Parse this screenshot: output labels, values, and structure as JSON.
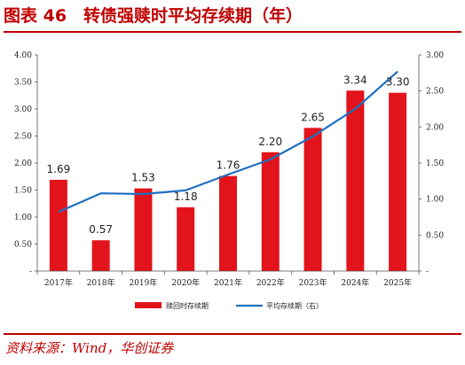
{
  "figure": {
    "title": "图表 46　转债强赎时平均存续期（年）",
    "source": "资料来源：Wind，华创证券"
  },
  "chart_data": {
    "type": "bar",
    "categories": [
      "2017年",
      "2018年",
      "2019年",
      "2020年",
      "2021年",
      "2022年",
      "2023年",
      "2024年",
      "2025年"
    ],
    "series": [
      {
        "name": "赎回时存续期",
        "type": "bar",
        "axis": "left",
        "color": "#e3131b",
        "values": [
          1.69,
          0.57,
          1.53,
          1.18,
          1.76,
          2.2,
          2.65,
          3.34,
          3.3
        ],
        "data_labels": [
          "1.69",
          "0.57",
          "1.53",
          "1.18",
          "1.76",
          "2.20",
          "2.65",
          "3.34",
          "3.30"
        ]
      },
      {
        "name": "平均存续期（右）",
        "type": "line",
        "axis": "right",
        "color": "#1f6fbf",
        "values": [
          0.82,
          1.08,
          1.07,
          1.12,
          1.34,
          1.55,
          1.87,
          2.25,
          2.77
        ]
      }
    ],
    "y_left": {
      "range": [
        0,
        4.0
      ],
      "ticks": [
        0,
        0.5,
        1.0,
        1.5,
        2.0,
        2.5,
        3.0,
        3.5,
        4.0
      ],
      "tick_labels": [
        "-",
        "0.50",
        "1.00",
        "1.50",
        "2.00",
        "2.50",
        "3.00",
        "3.50",
        "4.00"
      ]
    },
    "y_right": {
      "range": [
        0,
        3.0
      ],
      "ticks": [
        0,
        0.5,
        1.0,
        1.5,
        2.0,
        2.5,
        3.0
      ],
      "tick_labels": [
        "-",
        "0.50",
        "1.00",
        "1.50",
        "2.00",
        "2.50",
        "3.00"
      ]
    },
    "grid": false,
    "legend_position": "bottom"
  }
}
